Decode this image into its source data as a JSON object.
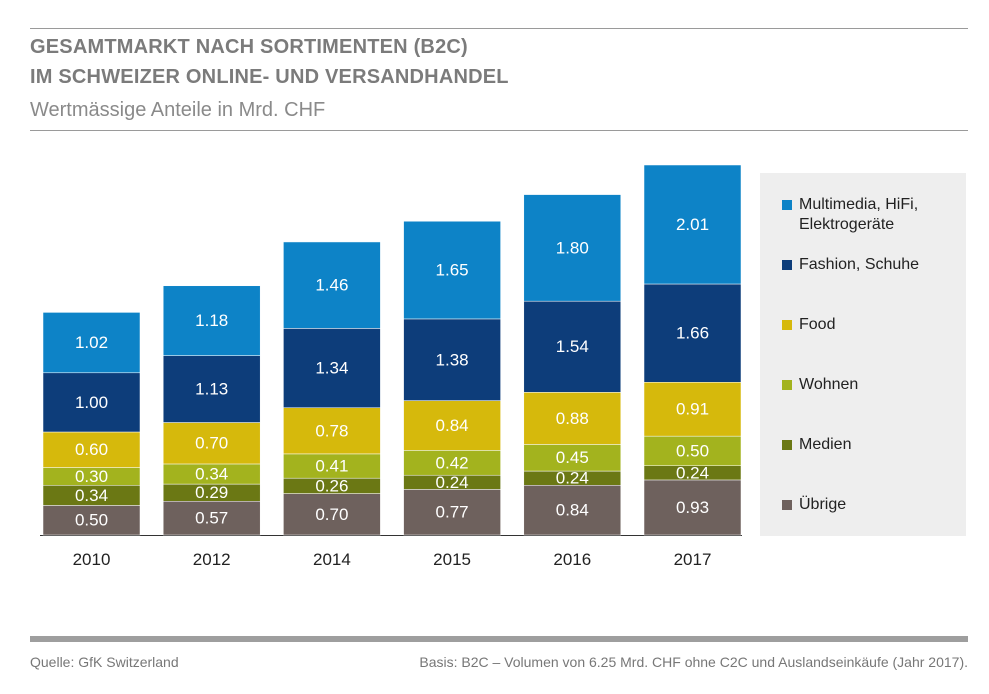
{
  "header": {
    "title_line1": "GESAMTMARKT NACH SORTIMENTEN (B2C)",
    "title_line2": "IM SCHWEIZER ONLINE- UND VERSANDHANDEL",
    "subtitle": "Wertmässige Anteile in Mrd. CHF"
  },
  "chart_data": {
    "type": "bar",
    "stacked": true,
    "title": "GESAMTMARKT NACH SORTIMENTEN (B2C) IM SCHWEIZER ONLINE- UND VERSANDHANDEL",
    "subtitle": "Wertmässige Anteile in Mrd. CHF",
    "xlabel": "",
    "ylabel": "",
    "categories": [
      "2010",
      "2012",
      "2014",
      "2015",
      "2016",
      "2017"
    ],
    "series": [
      {
        "name": "Übrige",
        "color": "#6e615d",
        "values": [
          "0.50",
          "0.57",
          "0.70",
          "0.77",
          "0.84",
          "0.93"
        ]
      },
      {
        "name": "Medien",
        "color": "#6b7814",
        "values": [
          "0.34",
          "0.29",
          "0.26",
          "0.24",
          "0.24",
          "0.24"
        ]
      },
      {
        "name": "Wohnen",
        "color": "#a3b31e",
        "values": [
          "0.30",
          "0.34",
          "0.41",
          "0.42",
          "0.45",
          "0.50"
        ]
      },
      {
        "name": "Food",
        "color": "#d6b90c",
        "values": [
          "0.60",
          "0.70",
          "0.78",
          "0.84",
          "0.88",
          "0.91"
        ]
      },
      {
        "name": "Fashion, Schuhe",
        "color": "#0d3d7a",
        "values": [
          "1.00",
          "1.13",
          "1.34",
          "1.38",
          "1.54",
          "1.66"
        ]
      },
      {
        "name": "Multimedia, HiFi, Elektrogeräte",
        "color": "#0d83c7",
        "values": [
          "1.02",
          "1.18",
          "1.46",
          "1.65",
          "1.80",
          "2.01"
        ]
      }
    ],
    "legend": {
      "position": "right",
      "order": [
        "Multimedia, HiFi, Elektrogeräte",
        "Fashion, Schuhe",
        "Food",
        "Wohnen",
        "Medien",
        "Übrige"
      ]
    },
    "grid": false,
    "ylim": [
      0,
      6.25
    ]
  },
  "footer": {
    "source": "Quelle: GfK Switzerland",
    "basis": "Basis: B2C – Volumen von 6.25 Mrd. CHF ohne C2C und Auslandseinkäufe (Jahr 2017)."
  }
}
